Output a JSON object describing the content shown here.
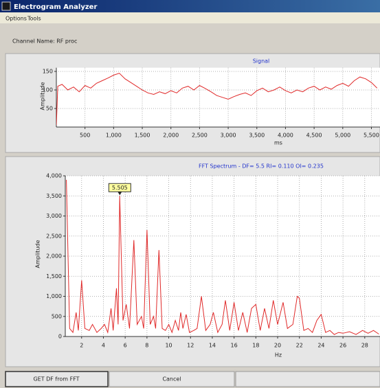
{
  "window": {
    "title": "Electrogram Analyzer",
    "menu": [
      "Options",
      "Tools"
    ],
    "channel_label": "Channel Name: RF proc"
  },
  "chart_data": [
    {
      "type": "line",
      "title": "Signal",
      "x_label": "ms",
      "y_label": "Amplitude",
      "color": "#e02828",
      "grid": true,
      "x": [
        0,
        25,
        100,
        200,
        300,
        400,
        500,
        600,
        700,
        800,
        900,
        1000,
        1100,
        1200,
        1300,
        1400,
        1500,
        1600,
        1700,
        1800,
        1900,
        2000,
        2100,
        2200,
        2300,
        2400,
        2500,
        2600,
        2700,
        2800,
        2900,
        3000,
        3100,
        3200,
        3300,
        3400,
        3500,
        3600,
        3700,
        3800,
        3900,
        4000,
        4100,
        4200,
        4300,
        4400,
        4500,
        4600,
        4700,
        4800,
        4900,
        5000,
        5100,
        5200,
        5300,
        5400,
        5500,
        5600
      ],
      "values": [
        5,
        110,
        115,
        100,
        108,
        95,
        112,
        105,
        118,
        125,
        132,
        140,
        145,
        130,
        120,
        110,
        100,
        92,
        88,
        95,
        90,
        98,
        92,
        105,
        110,
        100,
        112,
        104,
        95,
        85,
        80,
        75,
        82,
        88,
        92,
        85,
        98,
        105,
        95,
        100,
        108,
        98,
        92,
        100,
        95,
        105,
        110,
        100,
        108,
        102,
        112,
        118,
        110,
        125,
        135,
        130,
        120,
        105
      ],
      "xlim": [
        0,
        5650
      ],
      "ylim": [
        0,
        160
      ],
      "xticks": [
        500,
        {
          "value": 1000,
          "label": "1,000"
        },
        {
          "value": 1500,
          "label": "1,500"
        },
        {
          "value": 2000,
          "label": "2,000"
        },
        {
          "value": 2500,
          "label": "2,500"
        },
        {
          "value": 3000,
          "label": "3,000"
        },
        {
          "value": 3500,
          "label": "3,500"
        },
        {
          "value": 4000,
          "label": "4,000"
        },
        {
          "value": 4500,
          "label": "4,500"
        },
        {
          "value": 5000,
          "label": "5,000"
        },
        {
          "value": 5500,
          "label": "5,500"
        }
      ],
      "yticks": [
        50,
        100,
        150
      ]
    },
    {
      "type": "line",
      "title": "FFT Spectrum  -  DF= 5.5    RI= 0.110    OI= 0.235",
      "x_label": "Hz",
      "y_label": "Amplitude",
      "color": "#e02828",
      "grid": true,
      "x": [
        0.6,
        0.9,
        1.2,
        1.5,
        1.7,
        2.0,
        2.3,
        2.7,
        3.0,
        3.4,
        3.8,
        4.1,
        4.4,
        4.7,
        4.9,
        5.2,
        5.35,
        5.5,
        5.8,
        6.1,
        6.4,
        6.8,
        7.1,
        7.5,
        7.7,
        8.0,
        8.3,
        8.6,
        8.8,
        9.1,
        9.4,
        9.7,
        10.0,
        10.3,
        10.6,
        10.9,
        11.1,
        11.3,
        11.6,
        11.9,
        12.3,
        12.6,
        13.0,
        13.4,
        13.8,
        14.1,
        14.5,
        14.9,
        15.2,
        15.6,
        16.0,
        16.4,
        16.8,
        17.2,
        17.6,
        18.0,
        18.4,
        18.8,
        19.2,
        19.6,
        20.0,
        20.5,
        20.9,
        21.4,
        21.8,
        22.0,
        22.4,
        22.8,
        23.2,
        23.6,
        24.0,
        24.4,
        24.8,
        25.2,
        25.6,
        26.0,
        26.6,
        27.2,
        27.8,
        28.3,
        28.8,
        29.3
      ],
      "values": [
        3900,
        200,
        100,
        600,
        150,
        1400,
        200,
        150,
        300,
        100,
        200,
        300,
        100,
        700,
        150,
        1200,
        300,
        3500,
        400,
        800,
        200,
        2400,
        300,
        500,
        200,
        2650,
        300,
        500,
        200,
        2150,
        200,
        150,
        300,
        100,
        400,
        150,
        600,
        200,
        550,
        100,
        150,
        200,
        1000,
        150,
        300,
        600,
        100,
        300,
        900,
        150,
        850,
        150,
        600,
        100,
        700,
        800,
        150,
        700,
        200,
        900,
        300,
        850,
        200,
        300,
        1000,
        950,
        150,
        200,
        100,
        400,
        550,
        100,
        150,
        50,
        100,
        80,
        120,
        50,
        150,
        80,
        150,
        60
      ],
      "xlim": [
        0.5,
        29.4
      ],
      "ylim": [
        0,
        4000
      ],
      "xticks": [
        2,
        4,
        6,
        8,
        10,
        12,
        14,
        16,
        18,
        20,
        22,
        24,
        26,
        28
      ],
      "yticks": [
        0,
        500,
        {
          "value": 1000,
          "label": "1,000"
        },
        {
          "value": 1500,
          "label": "1,500"
        },
        {
          "value": 2000,
          "label": "2,000"
        },
        {
          "value": 2500,
          "label": "2,500"
        },
        {
          "value": 3000,
          "label": "3,000"
        },
        {
          "value": 3500,
          "label": "3,500"
        },
        {
          "value": 4000,
          "label": "4,000"
        }
      ],
      "annotations": [
        {
          "label": "5.505",
          "x": 5.505,
          "y": 3500
        }
      ]
    }
  ],
  "buttons": [
    "GET DF from FFT",
    "Cancel"
  ]
}
